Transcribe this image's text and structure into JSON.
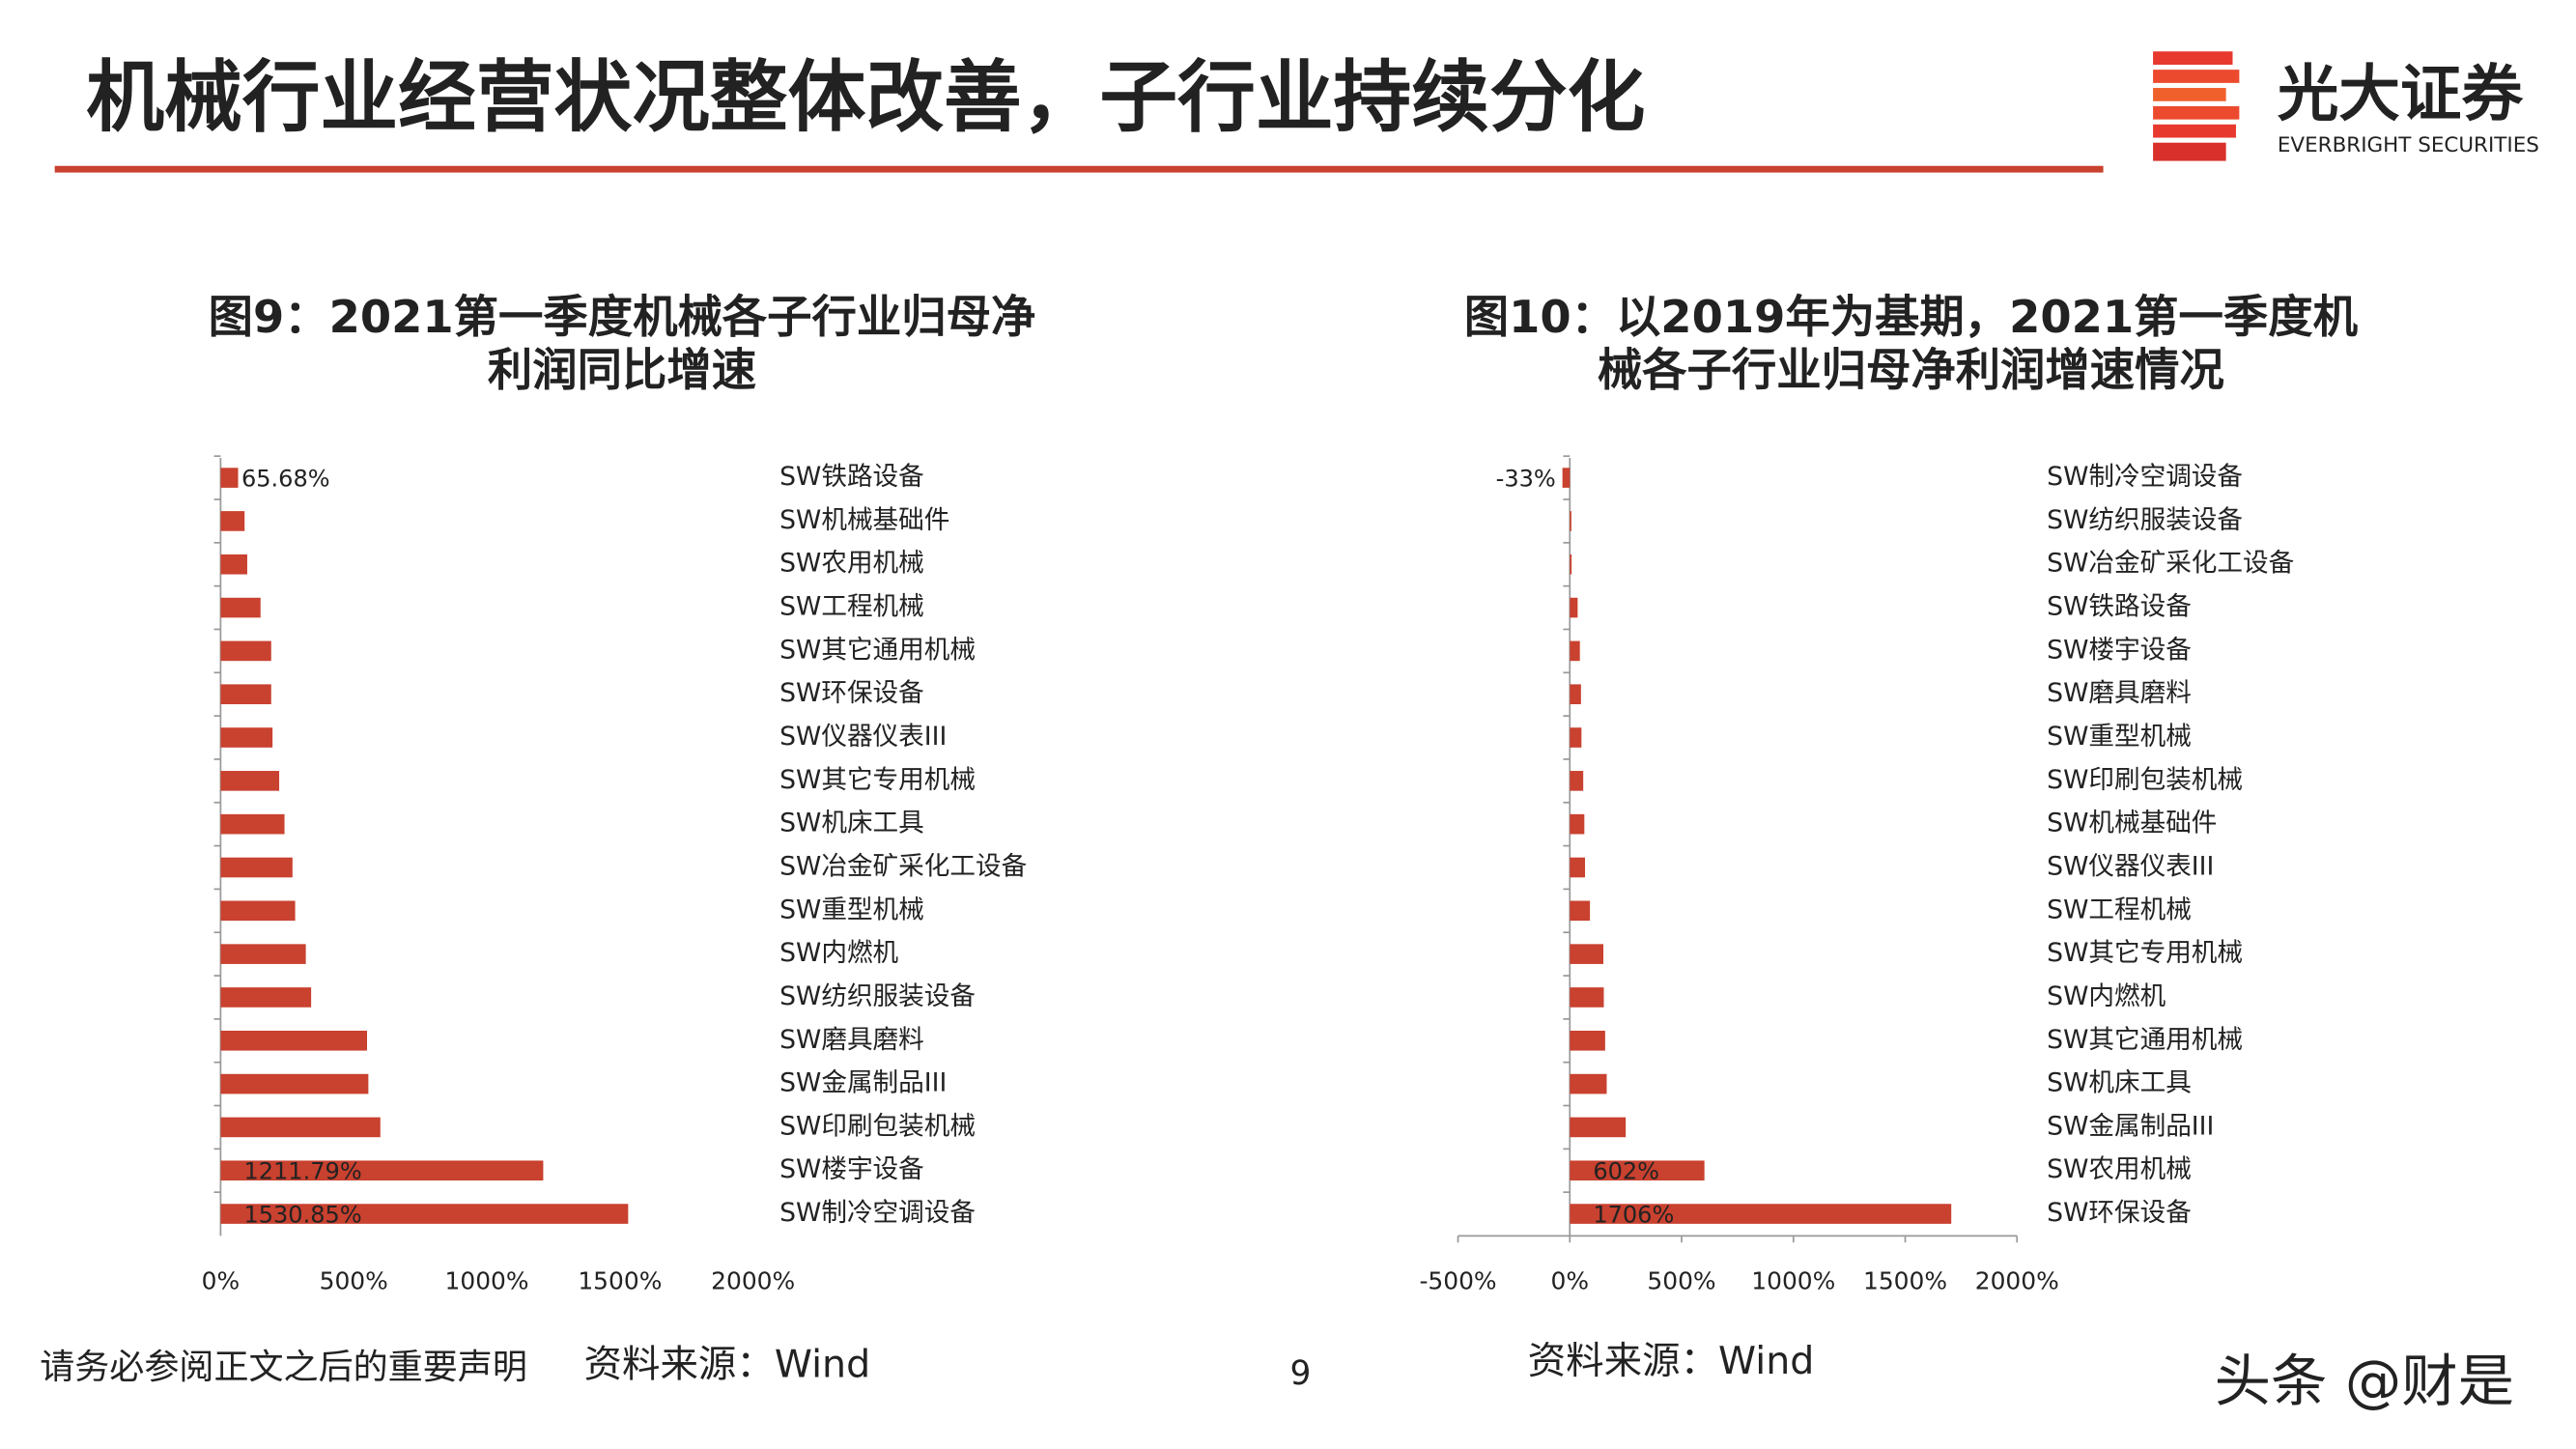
{
  "header": {
    "title": "机械行业经营状况整体改善，子行业持续分化",
    "brand": "光大证券",
    "brand_en": "EVERBRIGHT SECURITIES"
  },
  "footer": {
    "disclaimer": "请务必参阅正文之后的重要声明",
    "page": "9",
    "watermark": "头条 @财是"
  },
  "chart_data": [
    {
      "type": "bar",
      "orientation": "horizontal",
      "title": [
        "图9：2021第一季度机械各子行业归母净",
        "利润同比增速"
      ],
      "source": "资料来源：Wind",
      "categories": [
        "SW铁路设备",
        "SW机械基础件",
        "SW农用机械",
        "SW工程机械",
        "SW其它通用机械",
        "SW环保设备",
        "SW仪器仪表III",
        "SW其它专用机械",
        "SW机床工具",
        "SW冶金矿采化工设备",
        "SW重型机械",
        "SW内燃机",
        "SW纺织服装设备",
        "SW磨具磨料",
        "SW金属制品III",
        "SW印刷包装机械",
        "SW楼宇设备",
        "SW制冷空调设备"
      ],
      "values": [
        65.68,
        90,
        100,
        150,
        190,
        190,
        195,
        220,
        240,
        270,
        280,
        320,
        340,
        550,
        555,
        600,
        1211.79,
        1530.85
      ],
      "value_labels": [
        "65.68%",
        null,
        null,
        null,
        null,
        null,
        null,
        null,
        null,
        null,
        null,
        null,
        null,
        null,
        null,
        null,
        "1211.79%",
        "1530.85%"
      ],
      "color": "#c9412f",
      "xlim": [
        0,
        2000
      ],
      "xticks": [
        {
          "value": 0,
          "label": "0%"
        },
        {
          "value": 500,
          "label": "500%"
        },
        {
          "value": 1000,
          "label": "1000%"
        },
        {
          "value": 1500,
          "label": "1500%"
        },
        {
          "value": 2000,
          "label": "2000%"
        }
      ],
      "x_axis_line": false
    },
    {
      "type": "bar",
      "orientation": "horizontal",
      "title": [
        "图10：以2019年为基期，2021第一季度机",
        "械各子行业归母净利润增速情况"
      ],
      "source": "资料来源：Wind",
      "categories": [
        "SW制冷空调设备",
        "SW纺织服装设备",
        "SW冶金矿采化工设备",
        "SW铁路设备",
        "SW楼宇设备",
        "SW磨具磨料",
        "SW重型机械",
        "SW印刷包装机械",
        "SW机械基础件",
        "SW仪器仪表III",
        "SW工程机械",
        "SW其它专用机械",
        "SW内燃机",
        "SW其它通用机械",
        "SW机床工具",
        "SW金属制品III",
        "SW农用机械",
        "SW环保设备"
      ],
      "values": [
        -33,
        7,
        8,
        35,
        45,
        50,
        52,
        60,
        65,
        68,
        90,
        150,
        152,
        158,
        165,
        250,
        602,
        1706
      ],
      "value_labels": [
        "-33%",
        null,
        null,
        null,
        null,
        null,
        null,
        null,
        null,
        null,
        null,
        null,
        null,
        null,
        null,
        null,
        "602%",
        "1706%"
      ],
      "color": "#c9412f",
      "xlim": [
        -500,
        2000
      ],
      "xticks": [
        {
          "value": -500,
          "label": "-500%"
        },
        {
          "value": 0,
          "label": "0%"
        },
        {
          "value": 500,
          "label": "500%"
        },
        {
          "value": 1000,
          "label": "1000%"
        },
        {
          "value": 1500,
          "label": "1500%"
        },
        {
          "value": 2000,
          "label": "2000%"
        }
      ],
      "x_axis_line": true
    }
  ]
}
